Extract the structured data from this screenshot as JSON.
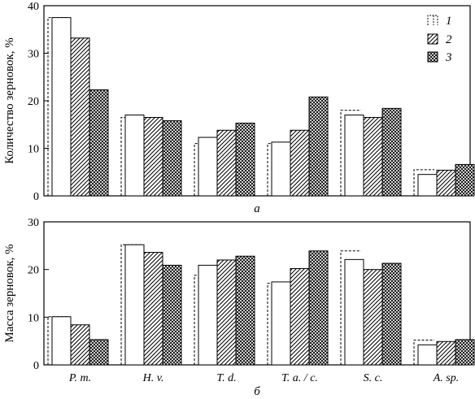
{
  "chart_data": [
    {
      "type": "bar",
      "panel_label": "а",
      "ylabel": "Количество зерновок, %",
      "ylim": [
        0,
        40
      ],
      "yticks": [
        "0",
        "10",
        "20",
        "30",
        "40"
      ],
      "categories": [
        "P. m.",
        "H. v.",
        "T. d.",
        "T. a. / c.",
        "S. c.",
        "A. sp."
      ],
      "show_category_labels": false,
      "legend": {
        "position": "top-right",
        "entries": [
          "1",
          "2",
          "3"
        ]
      },
      "series": [
        {
          "name": "1",
          "values": [
            37.5,
            17,
            12.3,
            11.3,
            17,
            4.5
          ],
          "dashed_values": [
            37.5,
            16.5,
            11,
            11,
            18,
            5.5
          ]
        },
        {
          "name": "2",
          "values": [
            33.2,
            16.5,
            13.8,
            13.8,
            16.5,
            5.4
          ]
        },
        {
          "name": "3",
          "values": [
            22.3,
            15.8,
            15.3,
            20.8,
            18.4,
            6.6
          ]
        }
      ]
    },
    {
      "type": "bar",
      "panel_label": "б",
      "ylabel": "Масса зерновок, %",
      "ylim": [
        0,
        30
      ],
      "yticks": [
        "0",
        "10",
        "20",
        "30"
      ],
      "categories": [
        "P. m.",
        "H. v.",
        "T. d.",
        "T. a. / c.",
        "S. c.",
        "A. sp."
      ],
      "show_category_labels": true,
      "series": [
        {
          "name": "1",
          "values": [
            10.1,
            25.2,
            20.9,
            17.4,
            22.1,
            4.2
          ],
          "dashed_values": [
            10.1,
            25.2,
            18.8,
            17.1,
            23.9,
            5.2
          ]
        },
        {
          "name": "2",
          "values": [
            8.4,
            23.6,
            22,
            20.2,
            20,
            4.9
          ]
        },
        {
          "name": "3",
          "values": [
            5.3,
            20.9,
            22.8,
            23.9,
            21.3,
            5.3
          ]
        }
      ]
    }
  ]
}
